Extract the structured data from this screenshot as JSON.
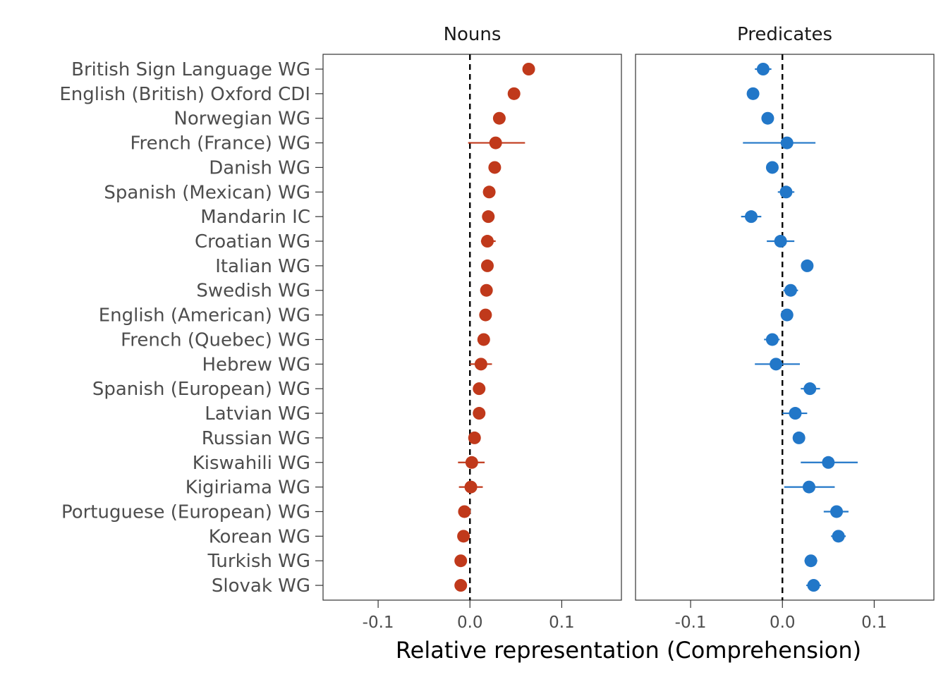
{
  "chart_data": {
    "type": "scatter",
    "subtype": "dot-and-whisker, faceted",
    "xlabel": "Relative representation (Comprehension)",
    "xlim": [
      -0.16,
      0.165
    ],
    "xticks": [
      -0.1,
      0.0,
      0.1
    ],
    "xtick_labels": [
      "-0.1",
      "0.0",
      "0.1"
    ],
    "reference_line": 0.0,
    "grid": false,
    "categories": [
      "British Sign Language WG",
      "English (British) Oxford CDI",
      "Norwegian WG",
      "French (France) WG",
      "Danish WG",
      "Spanish (Mexican) WG",
      "Mandarin IC",
      "Croatian WG",
      "Italian WG",
      "Swedish WG",
      "English (American) WG",
      "French (Quebec) WG",
      "Hebrew WG",
      "Spanish (European) WG",
      "Latvian WG",
      "Russian WG",
      "Kiswahili WG",
      "Kigiriama WG",
      "Portuguese (European) WG",
      "Korean WG",
      "Turkish WG",
      "Slovak WG"
    ],
    "series": [
      {
        "name": "Nouns",
        "color": "#c0391b",
        "values": [
          0.064,
          0.048,
          0.032,
          0.028,
          0.027,
          0.021,
          0.02,
          0.019,
          0.019,
          0.018,
          0.017,
          0.015,
          0.012,
          0.01,
          0.01,
          0.005,
          0.002,
          0.001,
          -0.006,
          -0.007,
          -0.01,
          -0.01
        ],
        "lower": [
          0.064,
          0.048,
          0.032,
          -0.002,
          0.027,
          0.021,
          0.02,
          0.012,
          0.019,
          0.018,
          0.017,
          0.015,
          0.0,
          0.01,
          0.006,
          0.005,
          -0.013,
          -0.012,
          -0.006,
          -0.007,
          -0.01,
          -0.01
        ],
        "upper": [
          0.064,
          0.048,
          0.032,
          0.06,
          0.027,
          0.021,
          0.02,
          0.028,
          0.019,
          0.018,
          0.017,
          0.015,
          0.024,
          0.01,
          0.015,
          0.005,
          0.016,
          0.014,
          -0.006,
          -0.007,
          -0.01,
          -0.01
        ]
      },
      {
        "name": "Predicates",
        "color": "#2277c8",
        "values": [
          -0.021,
          -0.032,
          -0.016,
          0.005,
          -0.011,
          0.004,
          -0.034,
          -0.002,
          0.027,
          0.009,
          0.005,
          -0.011,
          -0.007,
          0.03,
          0.014,
          0.018,
          0.05,
          0.029,
          0.059,
          0.061,
          0.031,
          0.034
        ],
        "lower": [
          -0.03,
          -0.032,
          -0.016,
          -0.043,
          -0.011,
          -0.005,
          -0.045,
          -0.017,
          0.027,
          0.001,
          0.005,
          -0.02,
          -0.03,
          0.02,
          0.0,
          0.018,
          0.02,
          0.002,
          0.045,
          0.053,
          0.024,
          0.026
        ],
        "upper": [
          -0.012,
          -0.032,
          -0.016,
          0.036,
          -0.011,
          0.013,
          -0.023,
          0.013,
          0.027,
          0.017,
          0.005,
          -0.003,
          0.019,
          0.041,
          0.027,
          0.018,
          0.082,
          0.057,
          0.072,
          0.069,
          0.038,
          0.042
        ],
        "reversed_order": true
      }
    ]
  }
}
